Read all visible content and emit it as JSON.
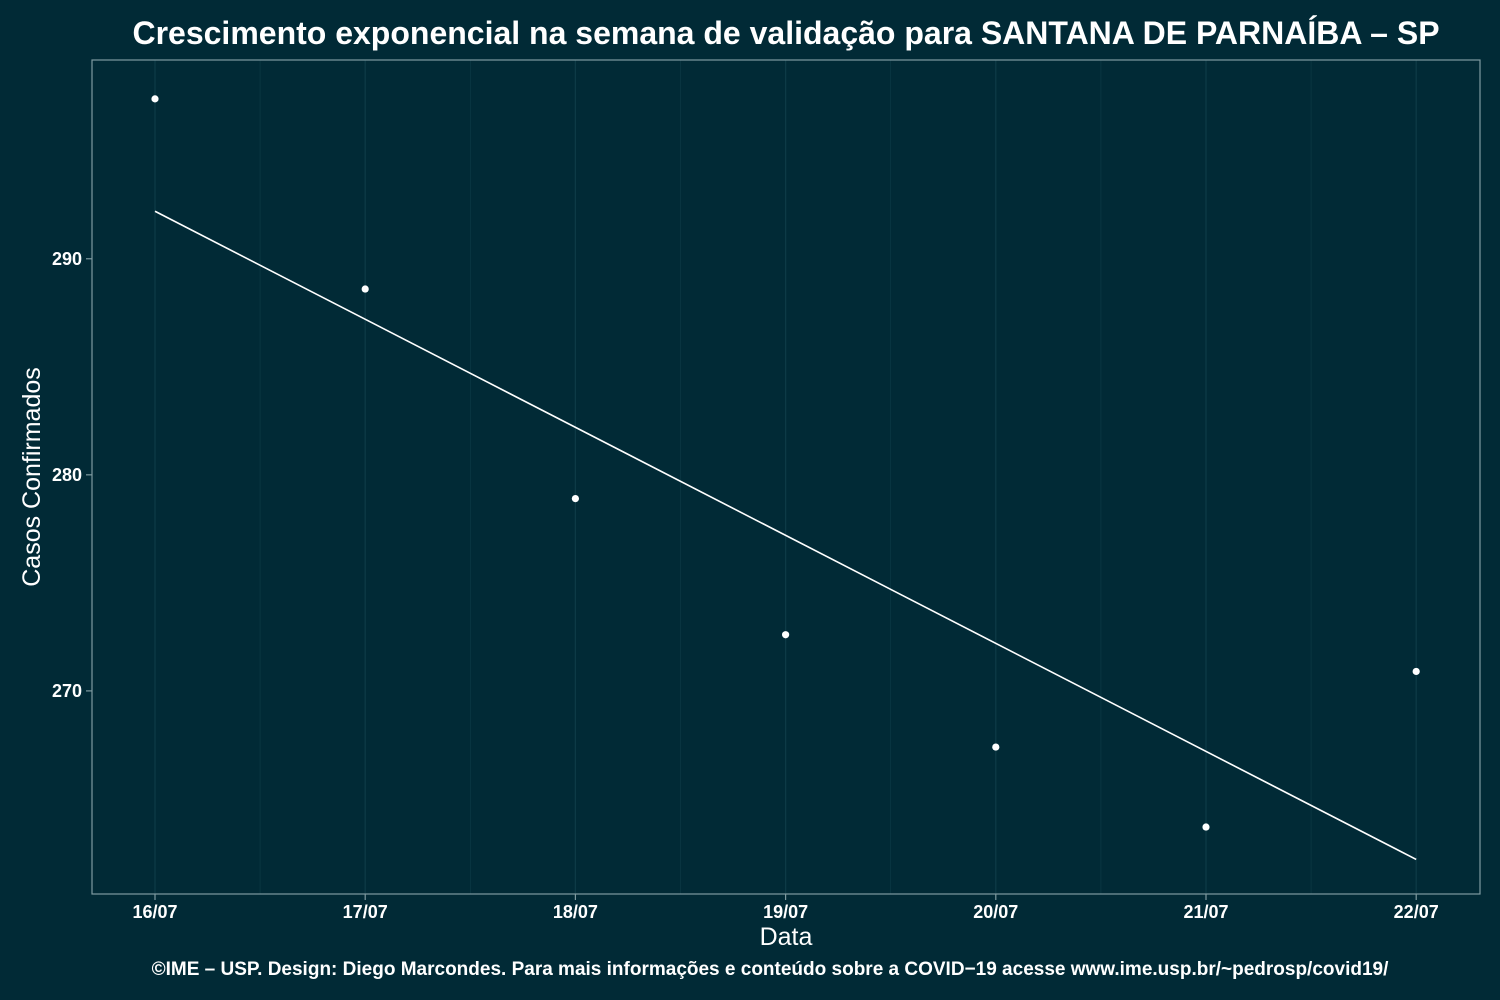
{
  "chart_data": {
    "type": "scatter",
    "title": "Crescimento exponencial na semana de validação para SANTANA DE PARNAÍBA – SP",
    "xlabel": "Data",
    "ylabel": "Casos Confirmados",
    "footer": "©IME – USP. Design: Diego Marcondes. Para mais informações e conteúdo sobre a COVID−19 acesse www.ime.usp.br/~pedrosp/covid19/",
    "x": [
      "16/07",
      "17/07",
      "18/07",
      "19/07",
      "20/07",
      "21/07",
      "22/07"
    ],
    "points": [
      297.4,
      288.6,
      278.9,
      272.6,
      267.4,
      263.7,
      270.9
    ],
    "fit_line": {
      "start": 292.2,
      "end": 262.2
    },
    "y_ticks": [
      270,
      280,
      290
    ],
    "ylim": [
      260.6,
      299.2
    ],
    "grid": true,
    "legend": "none",
    "colors": {
      "background": "#012a36",
      "grid": "#0d3a46",
      "marks": "#ffffff",
      "frame": "#7f9aa0"
    }
  }
}
